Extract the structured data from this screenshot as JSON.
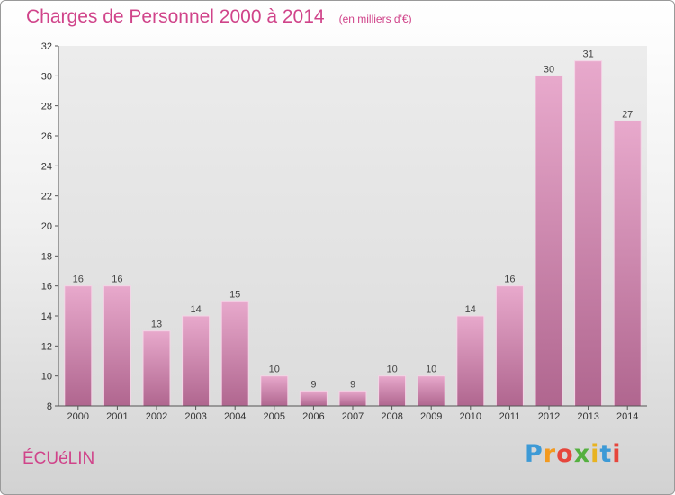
{
  "logo": {
    "letters": [
      "P",
      "r",
      "o",
      "x",
      "i",
      "t",
      "i"
    ],
    "colors": [
      "#3d9ad6",
      "#f39a1f",
      "#e6463c",
      "#55b040",
      "#e8b321",
      "#3d9ad6",
      "#e6463c"
    ]
  },
  "commune": "ÉCUéLIN",
  "chart_data": {
    "type": "bar",
    "title": "Charges de Personnel 2000 à 2014",
    "subtitle": "(en milliers d'€)",
    "categories": [
      "2000",
      "2001",
      "2002",
      "2003",
      "2004",
      "2005",
      "2006",
      "2007",
      "2008",
      "2009",
      "2010",
      "2011",
      "2012",
      "2013",
      "2014"
    ],
    "values": [
      16,
      16,
      13,
      14,
      15,
      10,
      9,
      9,
      10,
      10,
      14,
      16,
      30,
      31,
      27
    ],
    "ylim": [
      8,
      32
    ],
    "yticks": [
      8,
      10,
      12,
      14,
      16,
      18,
      20,
      22,
      24,
      26,
      28,
      30,
      32
    ],
    "grid": false,
    "bar_color": "#cc6a9f",
    "xlabel": "",
    "ylabel": ""
  }
}
